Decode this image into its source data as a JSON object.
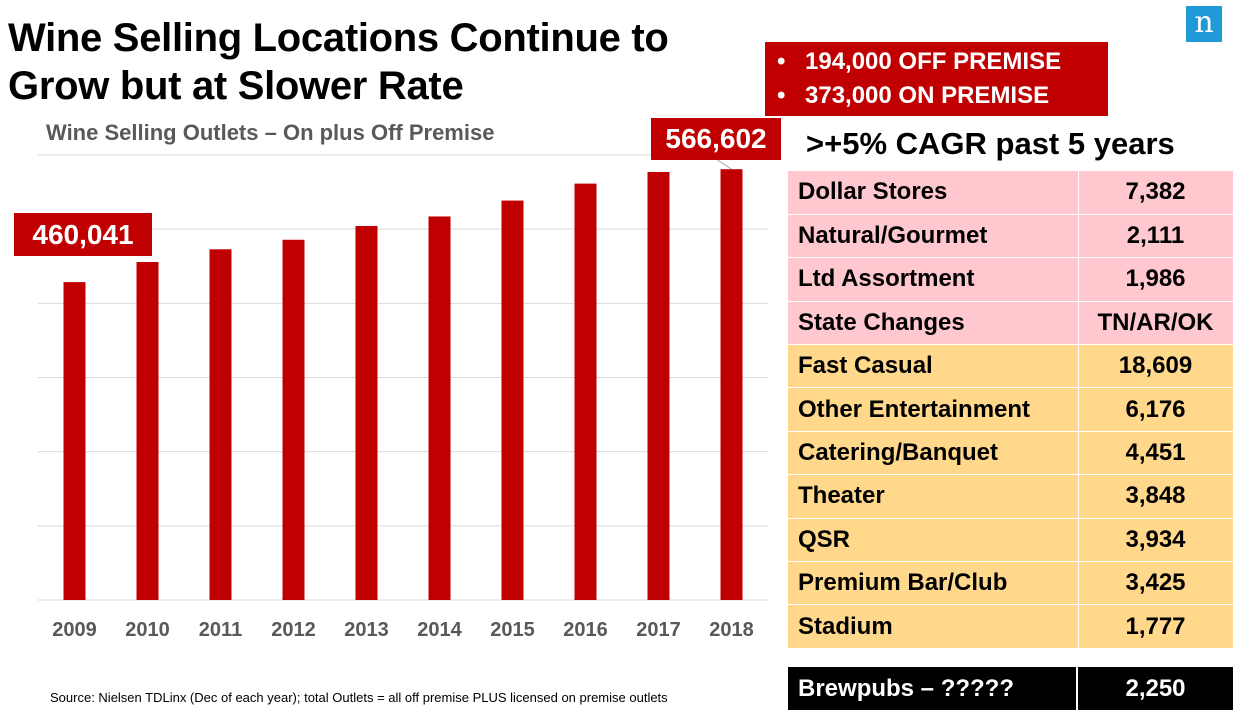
{
  "title_line1": "Wine Selling Locations Continue to",
  "title_line2": "Grow but at Slower Rate",
  "logo_letter": "n",
  "premise_lines": [
    "194,000 OFF PREMISE",
    "373,000 ON PREMISE"
  ],
  "bullet": "•",
  "cagr": ">+5% CAGR past 5 years",
  "source": "Source: Nielsen TDLinx (Dec of each year); total Outlets = all off premise PLUS licensed on premise outlets",
  "colors": {
    "bar": "#c00000",
    "pink": "#ffc7ce",
    "orange": "#ffd88c",
    "grid": "#d9d9d9",
    "axis_text": "#595959"
  },
  "chart_data": {
    "type": "bar",
    "title": "Wine Selling Outlets – On plus Off Premise",
    "categories": [
      "2009",
      "2010",
      "2011",
      "2012",
      "2013",
      "2014",
      "2015",
      "2016",
      "2017",
      "2018"
    ],
    "values": [
      460041,
      479000,
      491000,
      500000,
      513000,
      522000,
      537000,
      553000,
      564000,
      566602
    ],
    "ylim": [
      160000,
      580000
    ],
    "grid": true,
    "data_labels": {
      "first": "460,041",
      "last": "566,602"
    }
  },
  "table": {
    "rows": [
      {
        "label": "Dollar Stores",
        "value": "7,382",
        "group": "pink"
      },
      {
        "label": "Natural/Gourmet",
        "value": "2,111",
        "group": "pink"
      },
      {
        "label": "Ltd Assortment",
        "value": "1,986",
        "group": "pink"
      },
      {
        "label": "State Changes",
        "value": "TN/AR/OK",
        "group": "pink"
      },
      {
        "label": "Fast Casual",
        "value": "18,609",
        "group": "orange"
      },
      {
        "label": "Other Entertainment",
        "value": "6,176",
        "group": "orange"
      },
      {
        "label": "Catering/Banquet",
        "value": "4,451",
        "group": "orange"
      },
      {
        "label": "Theater",
        "value": "3,848",
        "group": "orange"
      },
      {
        "label": "QSR",
        "value": "3,934",
        "group": "orange"
      },
      {
        "label": "Premium Bar/Club",
        "value": "3,425",
        "group": "orange"
      },
      {
        "label": "Stadium",
        "value": "1,777",
        "group": "orange"
      }
    ],
    "brewpubs": {
      "label": "Brewpubs – ?????",
      "value": "2,250"
    }
  }
}
